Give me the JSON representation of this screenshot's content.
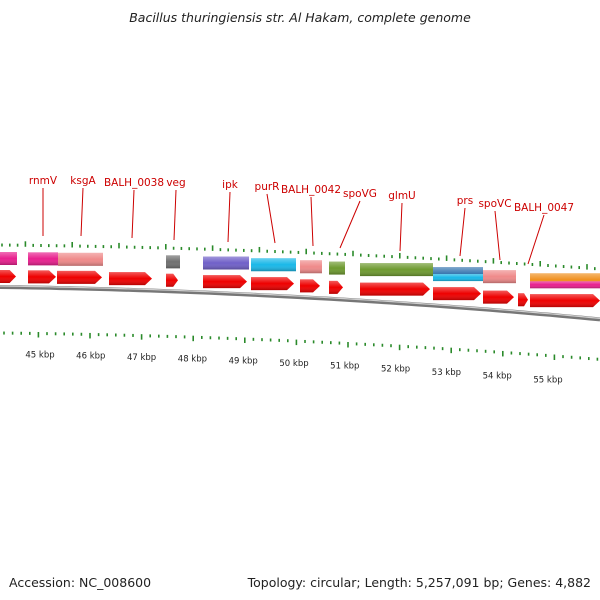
{
  "title": "Bacillus thuringiensis str. Al Hakam, complete genome",
  "footer": {
    "accession": "Accession: NC_008600",
    "summary": "Topology: circular; Length: 5,257,091 bp; Genes: 4,882"
  },
  "colors": {
    "gene_label": "#cc0000",
    "tick": "#2a8a2a",
    "backbone": "#777777",
    "cds_arrow": "#ee0000"
  },
  "gene_labels": [
    "rnmV",
    "ksgA",
    "BALH_0038",
    "veg",
    "ipk",
    "purR",
    "BALH_0042",
    "spoVG",
    "glmU",
    "prs",
    "spoVC",
    "BALH_0047"
  ],
  "scale_labels": [
    "45 kbp",
    "46 kbp",
    "47 kbp",
    "48 kbp",
    "49 kbp",
    "50 kbp",
    "51 kbp",
    "52 kbp",
    "53 kbp",
    "54 kbp",
    "55 kbp"
  ],
  "feature_colors": {
    "magenta": "#e8208e",
    "salmon": "#ef8a8a",
    "gray": "#6f6f6f",
    "purple": "#7060c8",
    "cyan": "#1ab8e8",
    "olive": "#6e9a30",
    "steelblue": "#3a78b0",
    "orange": "#f09020"
  }
}
